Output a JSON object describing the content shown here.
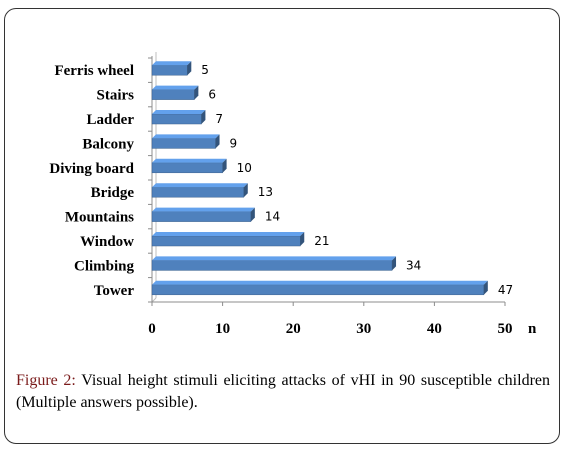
{
  "chart_data": {
    "type": "bar",
    "orientation": "horizontal",
    "categories": [
      "Ferris wheel",
      "Stairs",
      "Ladder",
      "Balcony",
      "Diving board",
      "Bridge",
      "Mountains",
      "Window",
      "Climbing",
      "Tower"
    ],
    "values": [
      5,
      6,
      7,
      9,
      10,
      13,
      14,
      21,
      34,
      47
    ],
    "x_ticks": [
      "0",
      "10",
      "20",
      "30",
      "40",
      "50"
    ],
    "xlim": [
      0,
      50
    ],
    "xlabel": "n",
    "bar_color": "#4f81bd",
    "grid": false
  },
  "caption": {
    "label": "Figure 2:",
    "text": " Visual height stimuli eliciting attacks of vHI in 90 susceptible children (Multiple answers possible)."
  }
}
